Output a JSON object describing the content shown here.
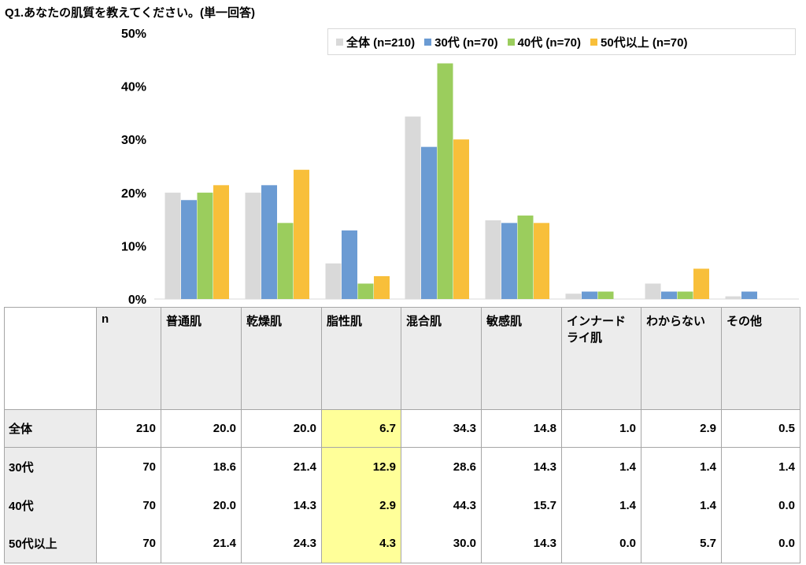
{
  "title": "Q1.あなたの肌質を教えてください。(単一回答)",
  "chart_data": {
    "type": "bar",
    "title": "Q1.あなたの肌質を教えてください。(単一回答)",
    "categories": [
      "普通肌",
      "乾燥肌",
      "脂性肌",
      "混合肌",
      "敏感肌",
      "インナードライ肌",
      "わからない",
      "その他"
    ],
    "series": [
      {
        "name": "全体(n=210)",
        "color": "#d9d9d9",
        "values": [
          20.0,
          20.0,
          6.7,
          34.3,
          14.8,
          1.0,
          2.9,
          0.5
        ]
      },
      {
        "name": "30代(n=70)",
        "color": "#6b9bd3",
        "values": [
          18.6,
          21.4,
          12.9,
          28.6,
          14.3,
          1.4,
          1.4,
          1.4
        ]
      },
      {
        "name": "40代(n=70)",
        "color": "#9bcd5d",
        "values": [
          20.0,
          14.3,
          2.9,
          44.3,
          15.7,
          1.4,
          1.4,
          0.0
        ]
      },
      {
        "name": "50代以上(n=70)",
        "color": "#f8bf3a",
        "values": [
          21.4,
          24.3,
          4.3,
          30.0,
          14.3,
          0.0,
          5.7,
          0.0
        ]
      }
    ],
    "ylim": [
      0,
      50
    ],
    "yticks": [
      "0%",
      "10%",
      "20%",
      "30%",
      "40%",
      "50%"
    ],
    "legend": "top-right",
    "grid": false
  },
  "legend": [
    "全体 (n=210)",
    "30代 (n=70)",
    "40代 (n=70)",
    "50代以上 (n=70)"
  ],
  "table": {
    "headers": [
      "n",
      "普通肌",
      "乾燥肌",
      "脂性肌",
      "混合肌",
      "敏感肌",
      "インナードライ肌",
      "わからない",
      "その他"
    ],
    "rows": [
      {
        "label": "全体",
        "cells": [
          "210",
          "20.0",
          "20.0",
          "6.7",
          "34.3",
          "14.8",
          "1.0",
          "2.9",
          "0.5"
        ]
      },
      {
        "label": "30代",
        "cells": [
          "70",
          "18.6",
          "21.4",
          "12.9",
          "28.6",
          "14.3",
          "1.4",
          "1.4",
          "1.4"
        ]
      },
      {
        "label": "40代",
        "cells": [
          "70",
          "20.0",
          "14.3",
          "2.9",
          "44.3",
          "15.7",
          "1.4",
          "1.4",
          "0.0"
        ]
      },
      {
        "label": "50代以上",
        "cells": [
          "70",
          "21.4",
          "24.3",
          "4.3",
          "30.0",
          "14.3",
          "0.0",
          "5.7",
          "0.0"
        ]
      }
    ]
  }
}
